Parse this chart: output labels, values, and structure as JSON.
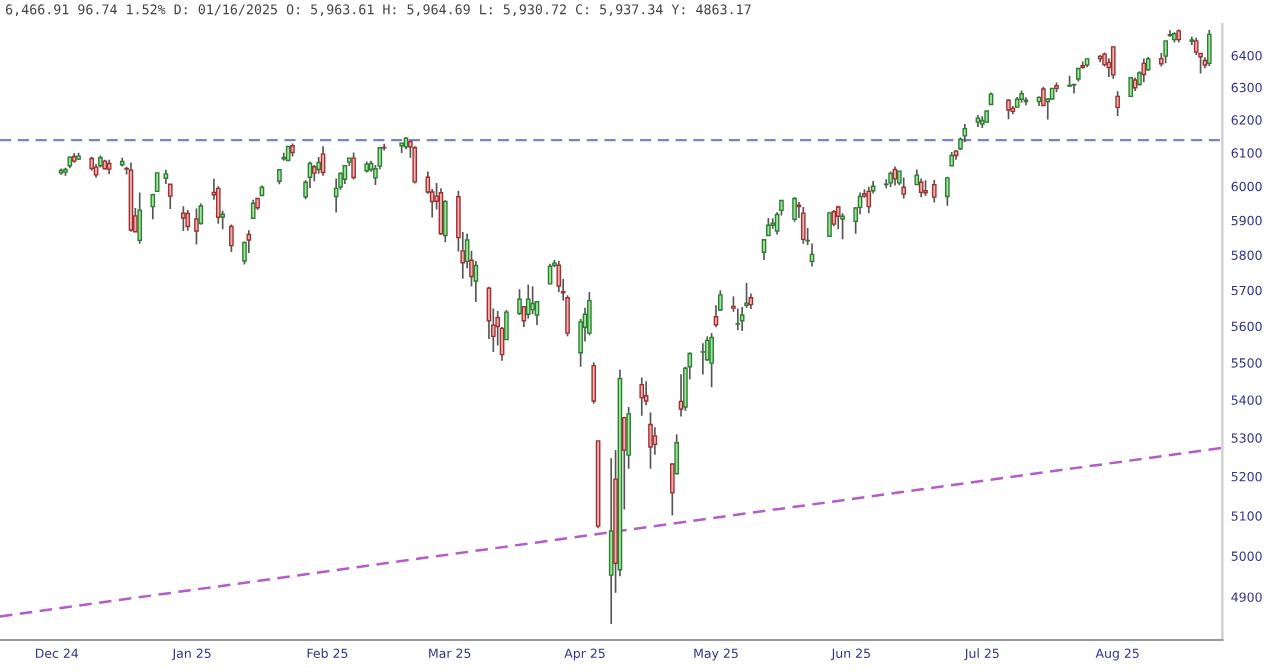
{
  "chart_data": {
    "type": "candlestick",
    "title": "6,466.91 96.74 1.52% D: 01/16/2025 O: 5,963.61 H: 5,964.69 L: 5,930.72 C: 5,937.34 Y: 4863.17",
    "log": true,
    "grid": false,
    "xlim": [
      "2024-11-18",
      "2025-08-25"
    ],
    "xticks": [
      {
        "value": "2024-12-01",
        "label": "Dec 24"
      },
      {
        "value": "2025-01-01",
        "label": "Jan 25"
      },
      {
        "value": "2025-02-01",
        "label": "Feb 25"
      },
      {
        "value": "2025-03-01",
        "label": "Mar 25"
      },
      {
        "value": "2025-04-01",
        "label": "Apr 25"
      },
      {
        "value": "2025-05-01",
        "label": "May 25"
      },
      {
        "value": "2025-06-01",
        "label": "Jun 25"
      },
      {
        "value": "2025-07-01",
        "label": "Jul 25"
      },
      {
        "value": "2025-08-01",
        "label": "Aug 25"
      }
    ],
    "ylim": [
      4797,
      6500
    ],
    "yticks": [
      4900,
      5000,
      5100,
      5200,
      5300,
      5400,
      5500,
      5600,
      5700,
      5800,
      5900,
      6000,
      6100,
      6200,
      6300,
      6400
    ],
    "ref_lines": [
      {
        "axis": "y",
        "value": 6138,
        "color": "#7f7fd0",
        "line_style": "dashed"
      }
    ],
    "series": [
      {
        "type": "line",
        "x": [
          "2024-11-18",
          "2025-08-25"
        ],
        "values": [
          4853,
          5274
        ],
        "color": "#b45cc8",
        "line_style": "dashed"
      }
    ],
    "x": [
      "2024-12-02",
      "2024-12-03",
      "2024-12-04",
      "2024-12-05",
      "2024-12-06",
      "2024-12-09",
      "2024-12-10",
      "2024-12-11",
      "2024-12-12",
      "2024-12-13",
      "2024-12-16",
      "2024-12-17",
      "2024-12-18",
      "2024-12-19",
      "2024-12-20",
      "2024-12-23",
      "2024-12-24",
      "2024-12-26",
      "2024-12-27",
      "2024-12-30",
      "2024-12-31",
      "2025-01-02",
      "2025-01-03",
      "2025-01-06",
      "2025-01-07",
      "2025-01-08",
      "2025-01-10",
      "2025-01-13",
      "2025-01-14",
      "2025-01-15",
      "2025-01-16",
      "2025-01-17",
      "2025-01-21",
      "2025-01-22",
      "2025-01-23",
      "2025-01-24",
      "2025-01-27",
      "2025-01-28",
      "2025-01-29",
      "2025-01-30",
      "2025-01-31",
      "2025-02-03",
      "2025-02-04",
      "2025-02-05",
      "2025-02-06",
      "2025-02-07",
      "2025-02-10",
      "2025-02-11",
      "2025-02-12",
      "2025-02-13",
      "2025-02-14",
      "2025-02-18",
      "2025-02-19",
      "2025-02-20",
      "2025-02-21",
      "2025-02-24",
      "2025-02-25",
      "2025-02-26",
      "2025-02-27",
      "2025-02-28",
      "2025-03-03",
      "2025-03-04",
      "2025-03-05",
      "2025-03-06",
      "2025-03-07",
      "2025-03-10",
      "2025-03-11",
      "2025-03-12",
      "2025-03-13",
      "2025-03-14",
      "2025-03-17",
      "2025-03-18",
      "2025-03-19",
      "2025-03-20",
      "2025-03-21",
      "2025-03-24",
      "2025-03-25",
      "2025-03-26",
      "2025-03-27",
      "2025-03-28",
      "2025-03-31",
      "2025-04-01",
      "2025-04-02",
      "2025-04-03",
      "2025-04-04",
      "2025-04-07",
      "2025-04-08",
      "2025-04-09",
      "2025-04-10",
      "2025-04-11",
      "2025-04-14",
      "2025-04-15",
      "2025-04-16",
      "2025-04-17",
      "2025-04-21",
      "2025-04-22",
      "2025-04-23",
      "2025-04-24",
      "2025-04-25",
      "2025-04-28",
      "2025-04-29",
      "2025-04-30",
      "2025-05-01",
      "2025-05-02",
      "2025-05-05",
      "2025-05-06",
      "2025-05-07",
      "2025-05-08",
      "2025-05-09",
      "2025-05-12",
      "2025-05-13",
      "2025-05-14",
      "2025-05-15",
      "2025-05-16",
      "2025-05-19",
      "2025-05-20",
      "2025-05-21",
      "2025-05-22",
      "2025-05-23",
      "2025-05-27",
      "2025-05-28",
      "2025-05-29",
      "2025-05-30",
      "2025-06-02",
      "2025-06-03",
      "2025-06-04",
      "2025-06-05",
      "2025-06-06",
      "2025-06-09",
      "2025-06-10",
      "2025-06-11",
      "2025-06-12",
      "2025-06-13",
      "2025-06-16",
      "2025-06-17",
      "2025-06-18",
      "2025-06-20",
      "2025-06-23",
      "2025-06-24",
      "2025-06-25",
      "2025-06-26",
      "2025-06-27",
      "2025-06-30",
      "2025-07-01",
      "2025-07-02",
      "2025-07-03",
      "2025-07-07",
      "2025-07-08",
      "2025-07-09",
      "2025-07-10",
      "2025-07-11",
      "2025-07-14",
      "2025-07-15",
      "2025-07-16",
      "2025-07-17",
      "2025-07-18",
      "2025-07-21",
      "2025-07-22",
      "2025-07-23",
      "2025-07-24",
      "2025-07-25",
      "2025-07-28",
      "2025-07-29",
      "2025-07-30",
      "2025-07-31",
      "2025-08-01",
      "2025-08-04",
      "2025-08-05",
      "2025-08-06",
      "2025-08-07",
      "2025-08-08",
      "2025-08-11",
      "2025-08-12",
      "2025-08-13",
      "2025-08-14",
      "2025-08-15",
      "2025-08-18",
      "2025-08-19",
      "2025-08-20",
      "2025-08-21",
      "2025-08-22"
    ],
    "ohlc": [
      [
        6040,
        6053,
        6034,
        6047
      ],
      [
        6042,
        6055,
        6031,
        6050
      ],
      [
        6061,
        6089,
        6054,
        6087
      ],
      [
        6089,
        6099,
        6070,
        6075
      ],
      [
        6081,
        6100,
        6078,
        6090
      ],
      [
        6083,
        6088,
        6047,
        6053
      ],
      [
        6057,
        6066,
        6025,
        6034
      ],
      [
        6061,
        6092,
        6056,
        6085
      ],
      [
        6075,
        6079,
        6051,
        6052
      ],
      [
        6068,
        6079,
        6036,
        6051
      ],
      [
        6064,
        6085,
        6059,
        6074
      ],
      [
        6053,
        6058,
        6035,
        6051
      ],
      [
        6048,
        6071,
        5867,
        5872
      ],
      [
        5913,
        5936,
        5866,
        5867
      ],
      [
        5842,
        5982,
        5832,
        5930
      ],
      [
        5940,
        5978,
        5903,
        5975
      ],
      [
        5985,
        6040,
        5983,
        6040
      ],
      [
        6024,
        6049,
        6007,
        6037
      ],
      [
        6006,
        6007,
        5933,
        5971
      ],
      [
        5921,
        5941,
        5869,
        5907
      ],
      [
        5920,
        5930,
        5870,
        5882
      ],
      [
        5904,
        5935,
        5830,
        5869
      ],
      [
        5891,
        5949,
        5888,
        5942
      ],
      [
        5982,
        6022,
        5960,
        5975
      ],
      [
        5994,
        6000,
        5890,
        5909
      ],
      [
        5910,
        5928,
        5874,
        5918
      ],
      [
        5882,
        5888,
        5809,
        5827
      ],
      [
        5783,
        5838,
        5773,
        5836
      ],
      [
        5859,
        5871,
        5806,
        5843
      ],
      [
        5906,
        5960,
        5906,
        5950
      ],
      [
        5964,
        5965,
        5931,
        5937
      ],
      [
        5973,
        6002,
        5972,
        5997
      ],
      [
        6015,
        6051,
        6006,
        6049
      ],
      [
        6082,
        6100,
        6076,
        6086
      ],
      [
        6077,
        6119,
        6075,
        6119
      ],
      [
        6121,
        6128,
        6089,
        6101
      ],
      [
        5969,
        6018,
        5962,
        6012
      ],
      [
        6027,
        6074,
        5995,
        6068
      ],
      [
        6058,
        6063,
        6015,
        6039
      ],
      [
        6050,
        6087,
        6037,
        6071
      ],
      [
        6096,
        6120,
        6031,
        6041
      ],
      [
        5970,
        6023,
        5923,
        5994
      ],
      [
        5998,
        6042,
        5990,
        6038
      ],
      [
        6021,
        6062,
        6007,
        6061
      ],
      [
        6072,
        6084,
        6060,
        6084
      ],
      [
        6084,
        6101,
        6020,
        6026
      ],
      [
        6046,
        6074,
        6041,
        6066
      ],
      [
        6050,
        6076,
        6043,
        6068
      ],
      [
        6025,
        6063,
        6004,
        6052
      ],
      [
        6060,
        6116,
        6051,
        6115
      ],
      [
        6116,
        6127,
        6107,
        6115
      ],
      [
        6121,
        6129,
        6099,
        6129
      ],
      [
        6118,
        6147,
        6111,
        6144
      ],
      [
        6134,
        6134,
        6085,
        6118
      ],
      [
        6115,
        6120,
        6008,
        6013
      ],
      [
        6027,
        6044,
        5978,
        5983
      ],
      [
        5983,
        5992,
        5908,
        5955
      ],
      [
        5971,
        6010,
        5932,
        5956
      ],
      [
        5981,
        5994,
        5858,
        5861
      ],
      [
        5856,
        5959,
        5837,
        5955
      ],
      [
        5969,
        5987,
        5810,
        5850
      ],
      [
        5812,
        5866,
        5733,
        5778
      ],
      [
        5782,
        5861,
        5762,
        5843
      ],
      [
        5785,
        5812,
        5711,
        5739
      ],
      [
        5726,
        5783,
        5667,
        5770
      ],
      [
        5706,
        5710,
        5565,
        5615
      ],
      [
        5603,
        5649,
        5529,
        5572
      ],
      [
        5624,
        5642,
        5547,
        5599
      ],
      [
        5594,
        5598,
        5505,
        5522
      ],
      [
        5563,
        5645,
        5563,
        5639
      ],
      [
        5635,
        5703,
        5631,
        5675
      ],
      [
        5654,
        5654,
        5598,
        5615
      ],
      [
        5633,
        5716,
        5621,
        5675
      ],
      [
        5646,
        5711,
        5633,
        5663
      ],
      [
        5631,
        5670,
        5603,
        5668
      ],
      [
        5718,
        5775,
        5718,
        5768
      ],
      [
        5771,
        5786,
        5765,
        5777
      ],
      [
        5771,
        5783,
        5695,
        5712
      ],
      [
        5696,
        5732,
        5671,
        5693
      ],
      [
        5679,
        5686,
        5572,
        5581
      ],
      [
        5527,
        5620,
        5489,
        5612
      ],
      [
        5597,
        5651,
        5558,
        5633
      ],
      [
        5581,
        5695,
        5575,
        5671
      ],
      [
        5492,
        5501,
        5390,
        5397
      ],
      [
        5292,
        5292,
        5069,
        5074
      ],
      [
        4953,
        5247,
        4835,
        5062
      ],
      [
        5193,
        5268,
        4910,
        4982
      ],
      [
        4966,
        5481,
        4950,
        5457
      ],
      [
        5353,
        5353,
        5116,
        5268
      ],
      [
        5255,
        5381,
        5220,
        5363
      ],
      [
        5441,
        5460,
        5358,
        5406
      ],
      [
        5411,
        5450,
        5386,
        5397
      ],
      [
        5335,
        5367,
        5220,
        5276
      ],
      [
        5305,
        5328,
        5256,
        5283
      ],
      [
        5232,
        5233,
        5101,
        5158
      ],
      [
        5207,
        5309,
        5207,
        5287
      ],
      [
        5396,
        5469,
        5356,
        5376
      ],
      [
        5381,
        5489,
        5371,
        5485
      ],
      [
        5489,
        5528,
        5455,
        5525
      ],
      [
        5529,
        5553,
        5468,
        5529
      ],
      [
        5508,
        5572,
        5505,
        5561
      ],
      [
        5499,
        5581,
        5434,
        5569
      ],
      [
        5626,
        5658,
        5597,
        5604
      ],
      [
        5645,
        5700,
        5643,
        5687
      ],
      [
        5655,
        5683,
        5640,
        5650
      ],
      [
        5606,
        5649,
        5589,
        5607
      ],
      [
        5615,
        5653,
        5587,
        5631
      ],
      [
        5658,
        5721,
        5651,
        5664
      ],
      [
        5679,
        5691,
        5648,
        5660
      ],
      [
        5808,
        5845,
        5786,
        5844
      ],
      [
        5856,
        5907,
        5855,
        5886
      ],
      [
        5886,
        5906,
        5876,
        5892
      ],
      [
        5869,
        5924,
        5859,
        5917
      ],
      [
        5929,
        5958,
        5914,
        5958
      ],
      [
        5903,
        5968,
        5896,
        5964
      ],
      [
        5944,
        5954,
        5907,
        5940
      ],
      [
        5921,
        5939,
        5832,
        5845
      ],
      [
        5841,
        5878,
        5829,
        5842
      ],
      [
        5782,
        5833,
        5767,
        5802
      ],
      [
        5854,
        5924,
        5854,
        5922
      ],
      [
        5925,
        5930,
        5883,
        5889
      ],
      [
        5939,
        5943,
        5874,
        5912
      ],
      [
        5904,
        5921,
        5845,
        5912
      ],
      [
        5897,
        5938,
        5861,
        5936
      ],
      [
        5938,
        5982,
        5918,
        5970
      ],
      [
        5978,
        5991,
        5966,
        5971
      ],
      [
        5985,
        5999,
        5921,
        5940
      ],
      [
        5987,
        6016,
        5979,
        6000
      ],
      [
        6005,
        6021,
        5994,
        6006
      ],
      [
        6010,
        6044,
        5998,
        6038
      ],
      [
        6050,
        6059,
        6002,
        6022
      ],
      [
        6010,
        6045,
        6003,
        6045
      ],
      [
        5997,
        6026,
        5964,
        5977
      ],
      [
        6005,
        6050,
        6004,
        6033
      ],
      [
        6012,
        6023,
        5968,
        5982
      ],
      [
        5987,
        6018,
        5971,
        5981
      ],
      [
        6005,
        6019,
        5952,
        5968
      ],
      [
        5970,
        6028,
        5943,
        6025
      ],
      [
        6061,
        6102,
        6060,
        6092
      ],
      [
        6105,
        6108,
        6079,
        6092
      ],
      [
        6112,
        6146,
        6108,
        6141
      ],
      [
        6151,
        6187,
        6132,
        6173
      ],
      [
        6193,
        6215,
        6178,
        6205
      ],
      [
        6187,
        6211,
        6175,
        6198
      ],
      [
        6193,
        6228,
        6191,
        6227
      ],
      [
        6247,
        6284,
        6246,
        6279
      ],
      [
        6260,
        6263,
        6202,
        6230
      ],
      [
        6235,
        6242,
        6217,
        6226
      ],
      [
        6239,
        6270,
        6237,
        6263
      ],
      [
        6263,
        6290,
        6252,
        6280
      ],
      [
        6256,
        6269,
        6245,
        6260
      ],
      [
        6256,
        6272,
        6242,
        6269
      ],
      [
        6295,
        6302,
        6243,
        6244
      ],
      [
        6256,
        6266,
        6201,
        6264
      ],
      [
        6264,
        6298,
        6263,
        6297
      ],
      [
        6305,
        6315,
        6285,
        6297
      ],
      [
        6304,
        6336,
        6303,
        6306
      ],
      [
        6307,
        6310,
        6281,
        6309
      ],
      [
        6326,
        6359,
        6318,
        6359
      ],
      [
        6368,
        6381,
        6358,
        6363
      ],
      [
        6370,
        6390,
        6363,
        6389
      ],
      [
        6397,
        6401,
        6379,
        6390
      ],
      [
        6404,
        6409,
        6365,
        6371
      ],
      [
        6378,
        6391,
        6332,
        6362
      ],
      [
        6427,
        6428,
        6327,
        6339
      ],
      [
        6272,
        6288,
        6212,
        6238
      ],
      [
        6272,
        6330,
        6271,
        6330
      ],
      [
        6323,
        6331,
        6289,
        6299
      ],
      [
        6309,
        6350,
        6306,
        6345
      ],
      [
        6375,
        6390,
        6316,
        6340
      ],
      [
        6355,
        6395,
        6353,
        6389
      ],
      [
        6390,
        6408,
        6365,
        6374
      ],
      [
        6398,
        6446,
        6375,
        6446
      ],
      [
        6463,
        6480,
        6459,
        6466
      ],
      [
        6450,
        6474,
        6441,
        6469
      ],
      [
        6478,
        6482,
        6441,
        6450
      ],
      [
        6445,
        6459,
        6433,
        6449
      ],
      [
        6446,
        6456,
        6401,
        6411
      ],
      [
        6406,
        6407,
        6343,
        6396
      ],
      [
        6384,
        6394,
        6360,
        6370
      ],
      [
        6375,
        6481,
        6367,
        6467
      ]
    ]
  }
}
